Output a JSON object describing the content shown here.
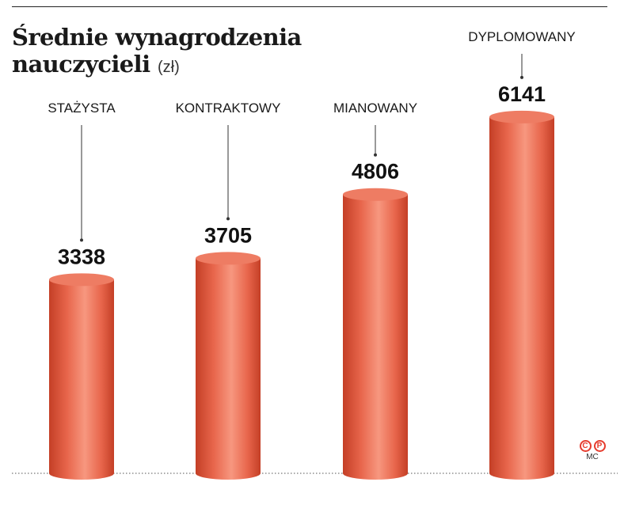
{
  "title": {
    "main_line1": "Średnie wynagrodzenia",
    "main_line2": "nauczycieli",
    "unit": "(zł)"
  },
  "chart_data": {
    "type": "bar",
    "title": "Średnie wynagrodzenia nauczycieli",
    "ylabel": "(zł)",
    "categories": [
      "STAŻYSTA",
      "KONTRAKTOWY",
      "MIANOWANY",
      "DYPLOMOWANY"
    ],
    "values": [
      3338,
      3705,
      4806,
      6141
    ],
    "data_labels": [
      "3338",
      "3705",
      "4806",
      "6141"
    ],
    "ylim": [
      0,
      6400
    ],
    "grid": false,
    "legend": "none"
  },
  "colors": {
    "bar_light": "#f7977f",
    "bar_mid": "#e8664c",
    "bar_dark": "#c43f26",
    "bar_top": "#ee7c63",
    "accent": "#e63c2e"
  },
  "footer": {
    "copyright_symbol": "C",
    "phonographic_symbol": "P",
    "agency": "MC"
  }
}
